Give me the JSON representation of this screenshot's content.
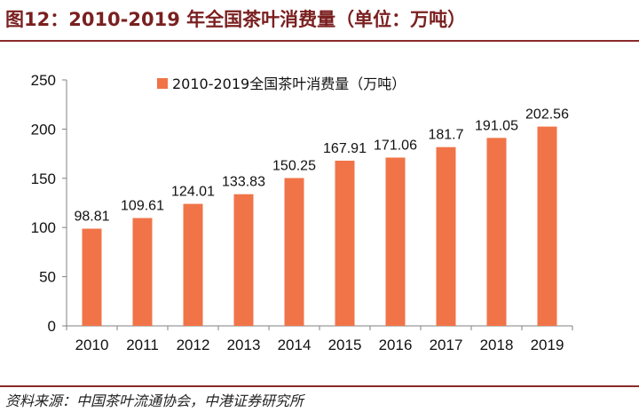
{
  "figure": {
    "title": "图12：2010-2019 年全国茶叶消费量（单位：万吨）",
    "source": "资料来源：中国茶叶流通协会，中港证券研究所"
  },
  "colors": {
    "bar": "#f07448",
    "axis": "#808080",
    "title": "#7a1f1f",
    "rule": "#8b2a2a",
    "text": "#111111"
  },
  "chart_data": {
    "type": "bar",
    "categories": [
      "2010",
      "2011",
      "2012",
      "2013",
      "2014",
      "2015",
      "2016",
      "2017",
      "2018",
      "2019"
    ],
    "series": [
      {
        "name": "2010-2019全国茶叶消费量（万吨）",
        "values": [
          98.81,
          109.61,
          124.01,
          133.83,
          150.25,
          167.91,
          171.06,
          181.7,
          191.05,
          202.56
        ]
      }
    ],
    "value_labels": [
      "98.81",
      "109.61",
      "124.01",
      "133.83",
      "150.25",
      "167.91",
      "171.06",
      "181.7",
      "191.05",
      "202.56"
    ],
    "ylim": [
      0,
      250
    ],
    "yticks": [
      "0",
      "50",
      "100",
      "150",
      "200",
      "250"
    ],
    "ytick_values": [
      0,
      50,
      100,
      150,
      200,
      250
    ],
    "grid": false,
    "legend": "top-center"
  }
}
